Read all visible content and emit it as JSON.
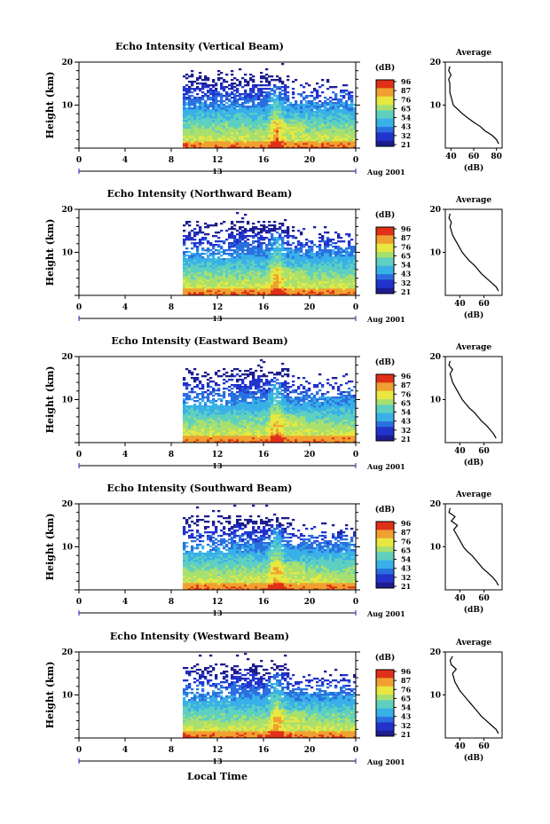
{
  "figure": {
    "footer_xlabel": "Local Time",
    "date_label": "Aug 2001",
    "y_axis_label": "Height (km)",
    "colorbar_unit": "(dB)",
    "colorbar_ticks": [
      "96",
      "87",
      "76",
      "65",
      "54",
      "43",
      "32",
      "21"
    ],
    "average_title": "Average",
    "average_xlabel": "(dB)",
    "x_ticks": [
      "0",
      "4",
      "8",
      "12",
      "16",
      "20",
      "0"
    ],
    "day_label": "13",
    "colors": {
      "empty": "#ffffff",
      "colormap": [
        "#1d1d8f",
        "#2233cc",
        "#2a6fe0",
        "#39b0e8",
        "#5fd0c0",
        "#a8e070",
        "#e8e840",
        "#f0a030",
        "#e03018"
      ]
    }
  },
  "chart_data": [
    {
      "type": "heatmap",
      "title": "Echo Intensity (Vertical Beam)",
      "xlabel": "Local Time",
      "ylabel": "Height (km)",
      "xlim": [
        0,
        24
      ],
      "ylim": [
        0,
        20
      ],
      "data_start_hour": 9,
      "colorbar": {
        "unit": "dB",
        "range": [
          21,
          96
        ]
      },
      "average_profile": {
        "xticks": [
          "40",
          "60",
          "80"
        ],
        "xlim": [
          35,
          85
        ],
        "heights_km": [
          1,
          2,
          3,
          4,
          5,
          6,
          7,
          8,
          9,
          10,
          11,
          12,
          13,
          14,
          15,
          16,
          17,
          18,
          19
        ],
        "db": [
          82,
          80,
          76,
          70,
          66,
          60,
          55,
          50,
          46,
          42,
          41,
          40,
          39,
          39,
          39,
          38,
          40,
          38,
          39
        ]
      }
    },
    {
      "type": "heatmap",
      "title": "Echo Intensity (Northward Beam)",
      "xlabel": "Local Time",
      "ylabel": "Height (km)",
      "xlim": [
        0,
        24
      ],
      "ylim": [
        0,
        20
      ],
      "data_start_hour": 9,
      "colorbar": {
        "unit": "dB",
        "range": [
          21,
          96
        ]
      },
      "average_profile": {
        "xticks": [
          "40",
          "60"
        ],
        "xlim": [
          28,
          75
        ],
        "heights_km": [
          1,
          2,
          3,
          4,
          5,
          6,
          7,
          8,
          9,
          10,
          11,
          12,
          13,
          14,
          15,
          16,
          17,
          18,
          19
        ],
        "db": [
          72,
          70,
          66,
          62,
          58,
          55,
          52,
          48,
          45,
          42,
          40,
          38,
          36,
          34,
          33,
          32,
          33,
          31,
          32
        ]
      }
    },
    {
      "type": "heatmap",
      "title": "Echo Intensity (Eastward Beam)",
      "xlabel": "Local Time",
      "ylabel": "Height (km)",
      "xlim": [
        0,
        24
      ],
      "ylim": [
        0,
        20
      ],
      "data_start_hour": 9,
      "colorbar": {
        "unit": "dB",
        "range": [
          21,
          96
        ]
      },
      "average_profile": {
        "xticks": [
          "40",
          "60"
        ],
        "xlim": [
          28,
          75
        ],
        "heights_km": [
          1,
          2,
          3,
          4,
          5,
          6,
          7,
          8,
          9,
          10,
          11,
          12,
          13,
          14,
          15,
          16,
          17,
          18,
          19
        ],
        "db": [
          70,
          68,
          65,
          62,
          58,
          55,
          52,
          48,
          45,
          42,
          40,
          38,
          36,
          34,
          33,
          32,
          34,
          31,
          32
        ]
      }
    },
    {
      "type": "heatmap",
      "title": "Echo Intensity (Southward Beam)",
      "xlabel": "Local Time",
      "ylabel": "Height (km)",
      "xlim": [
        0,
        24
      ],
      "ylim": [
        0,
        20
      ],
      "data_start_hour": 9,
      "colorbar": {
        "unit": "dB",
        "range": [
          21,
          96
        ]
      },
      "average_profile": {
        "xticks": [
          "40",
          "60"
        ],
        "xlim": [
          28,
          75
        ],
        "heights_km": [
          1,
          2,
          3,
          4,
          5,
          6,
          7,
          8,
          9,
          10,
          11,
          12,
          13,
          14,
          15,
          16,
          17,
          18,
          19
        ],
        "db": [
          72,
          70,
          67,
          63,
          59,
          56,
          53,
          50,
          46,
          43,
          41,
          39,
          37,
          35,
          38,
          33,
          36,
          31,
          32
        ]
      }
    },
    {
      "type": "heatmap",
      "title": "Echo Intensity (Westward Beam)",
      "xlabel": "Local Time",
      "ylabel": "Height (km)",
      "xlim": [
        0,
        24
      ],
      "ylim": [
        0,
        20
      ],
      "data_start_hour": 9,
      "colorbar": {
        "unit": "dB",
        "range": [
          21,
          96
        ]
      },
      "average_profile": {
        "xticks": [
          "40",
          "60"
        ],
        "xlim": [
          28,
          75
        ],
        "heights_km": [
          1,
          2,
          3,
          4,
          5,
          6,
          7,
          8,
          9,
          10,
          11,
          12,
          13,
          14,
          15,
          16,
          17,
          18,
          19
        ],
        "db": [
          72,
          70,
          66,
          62,
          58,
          55,
          52,
          49,
          46,
          43,
          40,
          38,
          36,
          35,
          34,
          37,
          33,
          32,
          34
        ]
      }
    }
  ]
}
